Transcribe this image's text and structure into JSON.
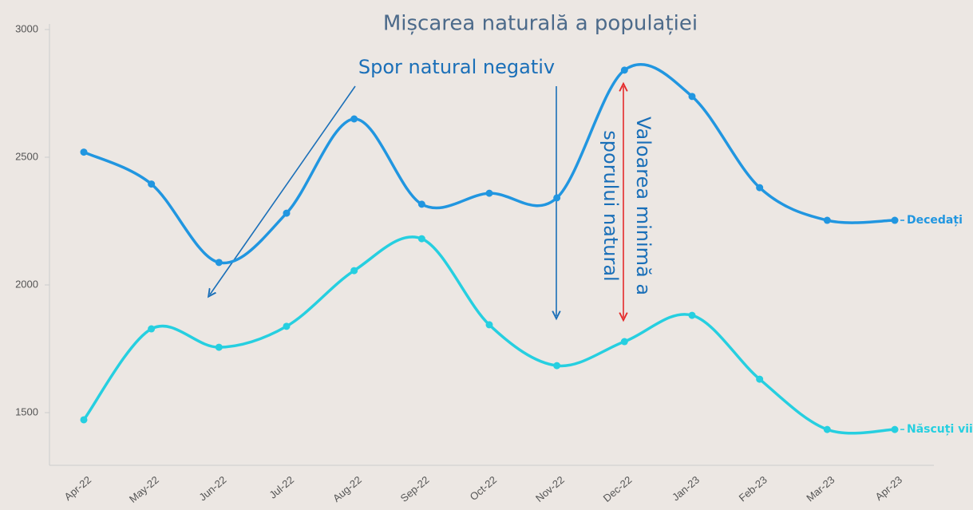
{
  "chart_data": {
    "type": "line",
    "title": "Mișcarea naturală a populației",
    "annotations": [
      "Spor natural negativ",
      "Valoarea minimă a",
      "sporului natural"
    ],
    "categories": [
      "Apr-22",
      "May-22",
      "Jun-22",
      "Jul-22",
      "Aug-22",
      "Sep-22",
      "Oct-22",
      "Nov-22",
      "Dec-22",
      "Jan-23",
      "Feb-23",
      "Mar-23",
      "Apr-23"
    ],
    "series": [
      {
        "name": "Decedați",
        "color": "#2196e0",
        "values": [
          2520,
          2395,
          2088,
          2281,
          2650,
          2316,
          2359,
          2341,
          2841,
          2738,
          2381,
          2253,
          2253
        ]
      },
      {
        "name": "Născuți vii",
        "color": "#26cfe0",
        "values": [
          1472,
          1828,
          1756,
          1838,
          2056,
          2181,
          1844,
          1684,
          1778,
          1881,
          1631,
          1434,
          1434
        ]
      }
    ],
    "ylim": [
      1300,
      3000
    ],
    "yticks": [
      1500,
      2000,
      2500,
      3000
    ],
    "grid": false
  }
}
